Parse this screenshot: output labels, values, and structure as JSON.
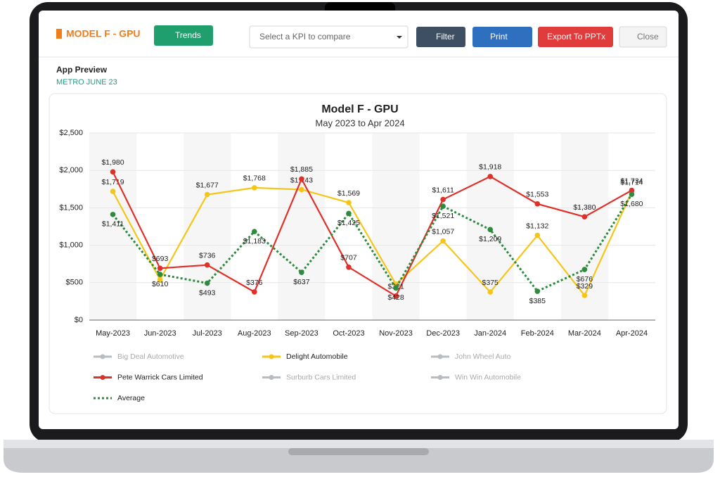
{
  "header": {
    "title": "MODEL F - GPU",
    "trends": "Trends",
    "kpi_placeholder": "Select a KPI to compare",
    "filter": "Filter",
    "print": "Print",
    "export": "Export To PPTx",
    "close": "Close"
  },
  "preview": {
    "title": "App Preview",
    "subtitle": "METRO JUNE 23"
  },
  "chart_data": {
    "type": "line",
    "title": "Model F - GPU",
    "subtitle": "May 2023 to Apr 2024",
    "categories": [
      "May-2023",
      "Jun-2023",
      "Jul-2023",
      "Aug-2023",
      "Sep-2023",
      "Oct-2023",
      "Nov-2023",
      "Dec-2023",
      "Jan-2024",
      "Feb-2024",
      "Mar-2024",
      "Apr-2024"
    ],
    "ylim": [
      0,
      2500
    ],
    "yticks": [
      {
        "value": 0,
        "label": "$0"
      },
      {
        "value": 500,
        "label": "$500"
      },
      {
        "value": 1000,
        "label": "$1,000"
      },
      {
        "value": 1500,
        "label": "$1,500"
      },
      {
        "value": 2000,
        "label": "$2,000"
      },
      {
        "value": 2500,
        "label": "$2,500"
      }
    ],
    "grid": true,
    "series": [
      {
        "name": "Big Deal Automotive",
        "color": "#b8bcc2",
        "visible": false
      },
      {
        "name": "Delight Automobile",
        "color": "#f5c518",
        "visible": true,
        "values": [
          1719,
          540,
          1677,
          1768,
          1743,
          1569,
          480,
          1057,
          375,
          1132,
          329,
          1714
        ],
        "value_labels": [
          "$1,719",
          null,
          "$1,677",
          "$1,768",
          "$1,743",
          "$1,569",
          null,
          "$1,057",
          "$375",
          "$1,132",
          "$329",
          "$1,714"
        ]
      },
      {
        "name": "John Wheel Auto",
        "color": "#b8bcc2",
        "visible": false
      },
      {
        "name": "Pete Warrick Cars Limited",
        "color": "#e0302a",
        "visible": true,
        "values": [
          1980,
          693,
          736,
          376,
          1885,
          707,
          321,
          1611,
          1918,
          1553,
          1380,
          1734
        ],
        "value_labels": [
          "$1,980",
          "$693",
          "$736",
          "$376",
          "$1,885",
          "$707",
          "$321",
          "$1,611",
          "$1,918",
          "$1,553",
          "$1,380",
          "$1,734"
        ]
      },
      {
        "name": "Surburb Cars Limited",
        "color": "#b8bcc2",
        "visible": false
      },
      {
        "name": "Win Win Automobile",
        "color": "#b8bcc2",
        "visible": false
      },
      {
        "name": "Average",
        "color": "#2e8b3e",
        "visible": true,
        "dashed": true,
        "values": [
          1411,
          610,
          493,
          1183,
          637,
          1425,
          428,
          1521,
          1209,
          385,
          676,
          1680
        ],
        "value_labels": [
          "$1,411",
          "$610",
          "$493",
          "$1,183",
          "$637",
          "$1,425",
          "$428",
          "$1,521",
          "$1,209",
          "$385",
          "$676",
          "$1,680"
        ]
      }
    ]
  }
}
